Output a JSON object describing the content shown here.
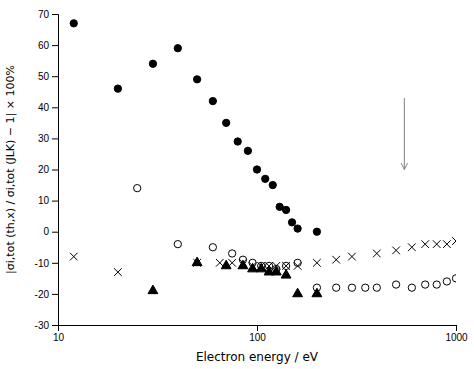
{
  "chart_data": {
    "type": "scatter",
    "x_label": "Electron energy / eV",
    "y_label": "|σi,tot (th,x) / σi,tot (JLK) − 1| × 100%",
    "log": "x",
    "grid": false,
    "xlim": [
      10,
      1000
    ],
    "xticks": [
      10,
      100,
      1000
    ],
    "ylim": [
      -30,
      70
    ],
    "yticks": [
      -30,
      -20,
      -10,
      0,
      10,
      20,
      30,
      40,
      50,
      60,
      70
    ],
    "series": [
      {
        "marker": "circle",
        "color": "black",
        "x": [
          12,
          20,
          30,
          40,
          50,
          60,
          70,
          80,
          90,
          100,
          110,
          120,
          130,
          140,
          150,
          160,
          200
        ],
        "values": [
          67,
          46,
          54,
          59,
          49,
          42,
          35,
          29,
          26,
          20,
          17,
          15,
          8,
          7,
          3,
          1,
          0
        ]
      },
      {
        "marker": "circle-open",
        "color": "black",
        "x": [
          25,
          40,
          60,
          75,
          85,
          95,
          105,
          115,
          125,
          140,
          160,
          200,
          250,
          300,
          350,
          400,
          500,
          600,
          700,
          800,
          900,
          1000
        ],
        "values": [
          14,
          -4,
          -5,
          -7,
          -9,
          -10,
          -11,
          -11,
          -12,
          -11,
          -10,
          -18,
          -18,
          -18,
          -18,
          -18,
          -17,
          -18,
          -17,
          -17,
          -16,
          -15
        ]
      },
      {
        "marker": "x",
        "color": "black",
        "x": [
          12,
          20,
          50,
          65,
          75,
          85,
          95,
          105,
          115,
          125,
          140,
          160,
          200,
          250,
          300,
          400,
          500,
          600,
          700,
          800,
          900,
          1000
        ],
        "values": [
          -8,
          -13,
          -10,
          -10,
          -10,
          -10,
          -11,
          -11,
          -11,
          -11,
          -11,
          -11,
          -10,
          -9,
          -8,
          -7,
          -6,
          -5,
          -4,
          -4,
          -4,
          -3
        ]
      },
      {
        "marker": "triangle",
        "color": "black",
        "x": [
          30,
          50,
          70,
          85,
          95,
          105,
          115,
          125,
          140,
          160,
          200
        ],
        "values": [
          -19,
          -10,
          -11,
          -11,
          -12,
          -12,
          -13,
          -13,
          -14,
          -20,
          -20
        ]
      }
    ],
    "annotations": [
      {
        "type": "arrow",
        "x": 550,
        "y_from": 43,
        "y_to": 20,
        "color": "gray"
      }
    ]
  }
}
